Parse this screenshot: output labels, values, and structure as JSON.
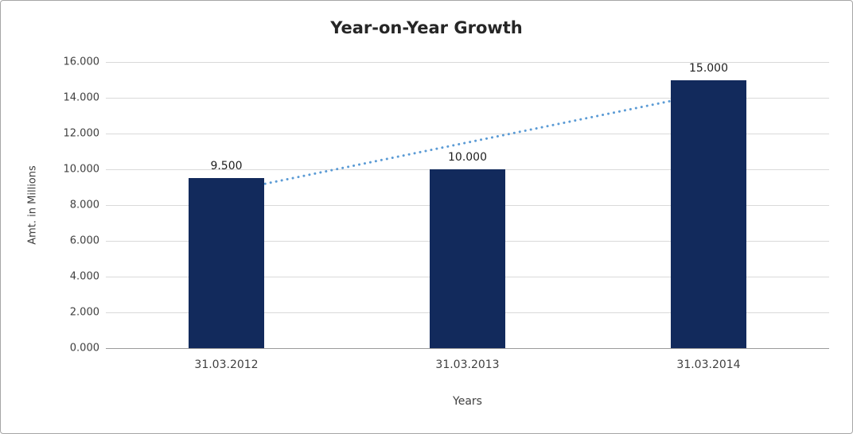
{
  "chart_data": {
    "type": "bar",
    "title": "Year-on-Year Growth",
    "xlabel": "Years",
    "ylabel": "Amt. in Millions",
    "categories": [
      "31.03.2012",
      "31.03.2013",
      "31.03.2014"
    ],
    "values": [
      9500,
      10000,
      15000
    ],
    "value_labels": [
      "9.500",
      "10.000",
      "15.000"
    ],
    "ylim": [
      0,
      16000
    ],
    "y_tick_step": 2000,
    "y_tick_labels": [
      "0.000",
      "2.000",
      "4.000",
      "6.000",
      "8.000",
      "10.000",
      "12.000",
      "14.000",
      "16.000"
    ],
    "grid": "horizontal",
    "legend": "none",
    "trendline": {
      "type": "linear",
      "style": "dotted",
      "color": "#5b9bd5",
      "endpoint_values": [
        8750,
        14250
      ]
    },
    "colors": {
      "bar": "#122a5c",
      "gridline": "#d9d9d9",
      "axis": "#9b9b9b",
      "text": "#404040",
      "value_label_text": "#1f1f1f",
      "border": "#a6a6a6",
      "background": "#ffffff"
    }
  }
}
